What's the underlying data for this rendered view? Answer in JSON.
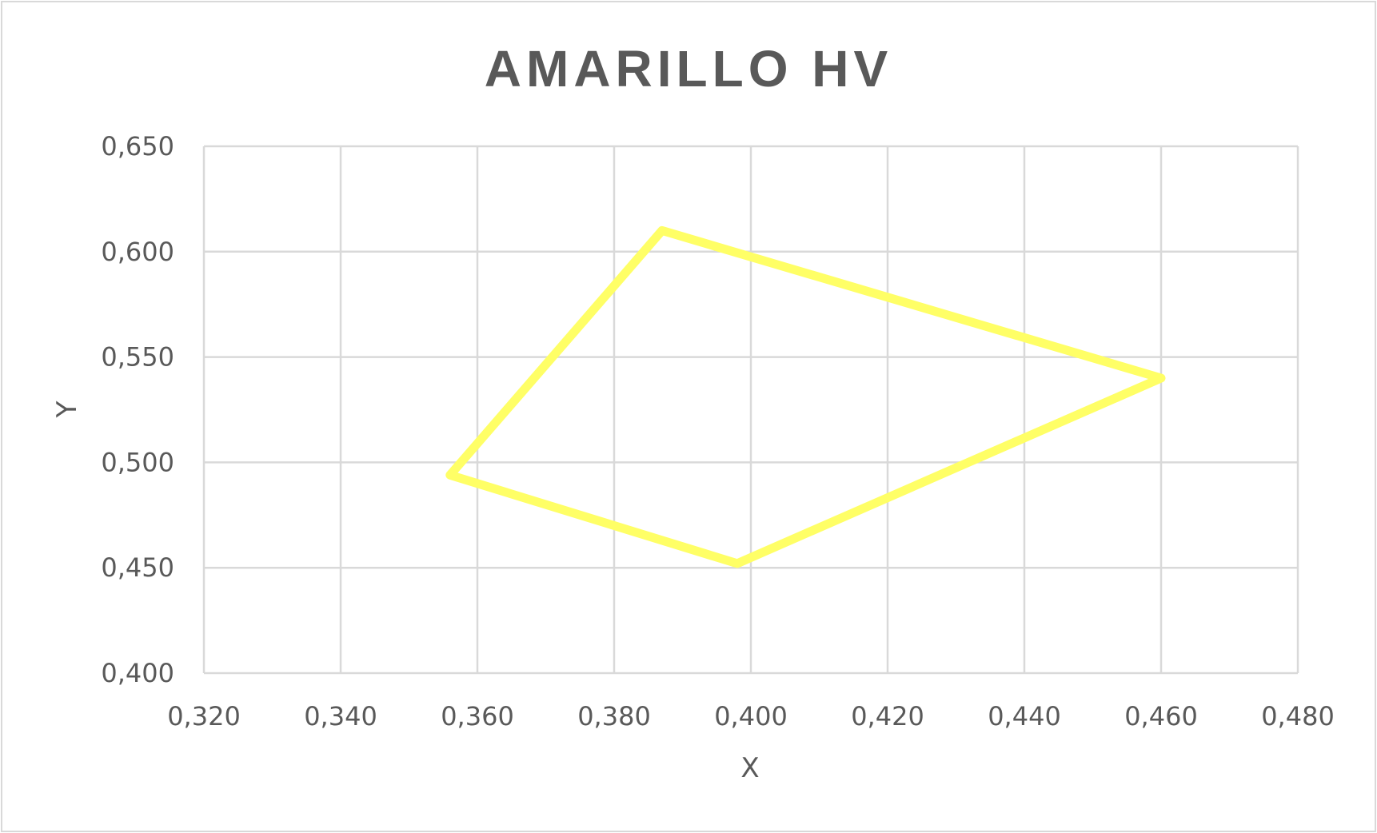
{
  "chart_data": {
    "type": "scatter",
    "title": "AMARILLO HV",
    "xlabel": "X",
    "ylabel": "Y",
    "xlim": [
      0.32,
      0.48
    ],
    "ylim": [
      0.4,
      0.65
    ],
    "x_ticks": [
      "0,320",
      "0,340",
      "0,360",
      "0,380",
      "0,400",
      "0,420",
      "0,440",
      "0,460",
      "0,480"
    ],
    "y_ticks": [
      "0,400",
      "0,450",
      "0,500",
      "0,550",
      "0,600",
      "0,650"
    ],
    "grid": true,
    "legend": "none",
    "series": [
      {
        "color": "#ffff66",
        "line": "closed",
        "points": [
          {
            "x": 0.387,
            "y": 0.61
          },
          {
            "x": 0.46,
            "y": 0.54
          },
          {
            "x": 0.398,
            "y": 0.452
          },
          {
            "x": 0.356,
            "y": 0.494
          },
          {
            "x": 0.387,
            "y": 0.61
          }
        ]
      }
    ]
  }
}
